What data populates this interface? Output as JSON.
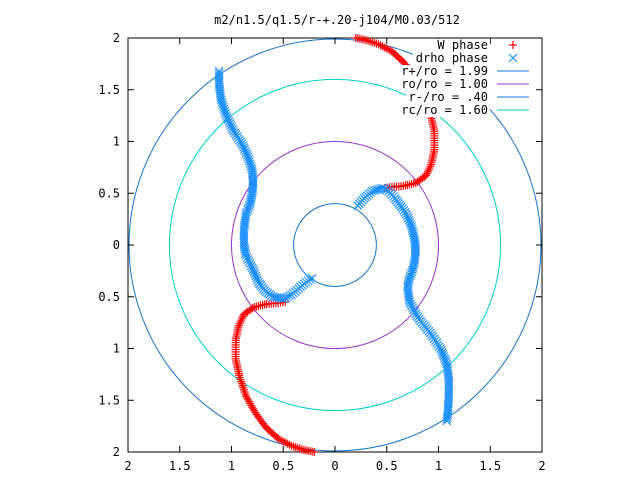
{
  "chart_data": {
    "type": "scatter",
    "title": "m2/n1.5/q1.5/r-+.20-j104/M0.03/512",
    "xlabel": "",
    "ylabel": "",
    "xlim": [
      -2,
      2
    ],
    "ylim": [
      -2,
      2
    ],
    "grid": false,
    "legend_position": "top-right",
    "x_ticks": [
      {
        "value": -2,
        "label": "2"
      },
      {
        "value": -1.5,
        "label": "1.5"
      },
      {
        "value": -1,
        "label": "1"
      },
      {
        "value": -0.5,
        "label": "0.5"
      },
      {
        "value": 0,
        "label": "0"
      },
      {
        "value": 0.5,
        "label": "0.5"
      },
      {
        "value": 1,
        "label": "1"
      },
      {
        "value": 1.5,
        "label": "1.5"
      },
      {
        "value": 2,
        "label": "2"
      }
    ],
    "y_ticks": [
      {
        "value": 2,
        "label": "2"
      },
      {
        "value": 1.5,
        "label": "1.5"
      },
      {
        "value": 1,
        "label": "1"
      },
      {
        "value": 0.5,
        "label": "0.5"
      },
      {
        "value": 0,
        "label": "0"
      },
      {
        "value": -0.5,
        "label": "0.5"
      },
      {
        "value": -1,
        "label": "1"
      },
      {
        "value": -1.5,
        "label": "1.5"
      },
      {
        "value": -2,
        "label": "2"
      }
    ],
    "series": [
      {
        "name": "W phase",
        "kind": "points",
        "marker": "plus",
        "color": "#ff0000",
        "branches": [
          [
            [
              0.2,
              2.0
            ],
            [
              0.3,
              1.98
            ],
            [
              0.42,
              1.94
            ],
            [
              0.55,
              1.87
            ],
            [
              0.67,
              1.76
            ],
            [
              0.77,
              1.62
            ],
            [
              0.86,
              1.46
            ],
            [
              0.92,
              1.28
            ],
            [
              0.96,
              1.1
            ],
            [
              0.96,
              0.92
            ],
            [
              0.93,
              0.78
            ],
            [
              0.88,
              0.67
            ],
            [
              0.78,
              0.6
            ],
            [
              0.66,
              0.57
            ],
            [
              0.55,
              0.56
            ],
            [
              0.48,
              0.55
            ]
          ],
          [
            [
              -0.2,
              -2.0
            ],
            [
              -0.3,
              -1.98
            ],
            [
              -0.42,
              -1.94
            ],
            [
              -0.55,
              -1.87
            ],
            [
              -0.67,
              -1.76
            ],
            [
              -0.77,
              -1.62
            ],
            [
              -0.86,
              -1.46
            ],
            [
              -0.92,
              -1.28
            ],
            [
              -0.96,
              -1.1
            ],
            [
              -0.96,
              -0.92
            ],
            [
              -0.93,
              -0.78
            ],
            [
              -0.88,
              -0.67
            ],
            [
              -0.78,
              -0.6
            ],
            [
              -0.66,
              -0.57
            ],
            [
              -0.55,
              -0.56
            ],
            [
              -0.48,
              -0.55
            ]
          ]
        ]
      },
      {
        "name": "drho phase",
        "kind": "points",
        "marker": "cross",
        "color": "#1e90ff",
        "branches": [
          [
            [
              0.22,
              0.38
            ],
            [
              0.28,
              0.45
            ],
            [
              0.36,
              0.52
            ],
            [
              0.46,
              0.55
            ],
            [
              0.52,
              0.52
            ],
            [
              0.58,
              0.45
            ],
            [
              0.64,
              0.37
            ],
            [
              0.7,
              0.28
            ],
            [
              0.74,
              0.18
            ],
            [
              0.77,
              0.05
            ],
            [
              0.78,
              -0.05
            ],
            [
              0.77,
              -0.15
            ],
            [
              0.75,
              -0.24
            ],
            [
              0.72,
              -0.32
            ],
            [
              0.7,
              -0.4
            ],
            [
              0.72,
              -0.55
            ],
            [
              0.8,
              -0.7
            ],
            [
              0.92,
              -0.85
            ],
            [
              1.02,
              -1.0
            ],
            [
              1.08,
              -1.15
            ],
            [
              1.1,
              -1.3
            ],
            [
              1.1,
              -1.45
            ],
            [
              1.09,
              -1.62
            ],
            [
              1.08,
              -1.7
            ]
          ],
          [
            [
              -1.12,
              1.68
            ],
            [
              -1.12,
              1.55
            ],
            [
              -1.1,
              1.4
            ],
            [
              -1.05,
              1.25
            ],
            [
              -0.98,
              1.1
            ],
            [
              -0.9,
              0.98
            ],
            [
              -0.84,
              0.85
            ],
            [
              -0.8,
              0.72
            ],
            [
              -0.79,
              0.6
            ],
            [
              -0.8,
              0.5
            ],
            [
              -0.82,
              0.4
            ],
            [
              -0.86,
              0.3
            ],
            [
              -0.88,
              0.15
            ],
            [
              -0.88,
              0.0
            ],
            [
              -0.86,
              -0.1
            ],
            [
              -0.8,
              -0.22
            ],
            [
              -0.74,
              -0.36
            ],
            [
              -0.68,
              -0.44
            ],
            [
              -0.6,
              -0.5
            ],
            [
              -0.5,
              -0.52
            ],
            [
              -0.42,
              -0.48
            ],
            [
              -0.35,
              -0.42
            ],
            [
              -0.28,
              -0.36
            ],
            [
              -0.22,
              -0.32
            ]
          ]
        ]
      },
      {
        "name": "r+/ro = 1.99",
        "kind": "circle",
        "radius": 1.99,
        "color": "#1874cd"
      },
      {
        "name": "ro/ro = 1.00",
        "kind": "circle",
        "radius": 1.0,
        "color": "#9a32cd"
      },
      {
        "name": "r-/ro = .40",
        "kind": "circle",
        "radius": 0.4,
        "color": "#1874cd"
      },
      {
        "name": "rc/ro = 1.60",
        "kind": "circle",
        "radius": 1.6,
        "color": "#00cdcd"
      }
    ]
  }
}
